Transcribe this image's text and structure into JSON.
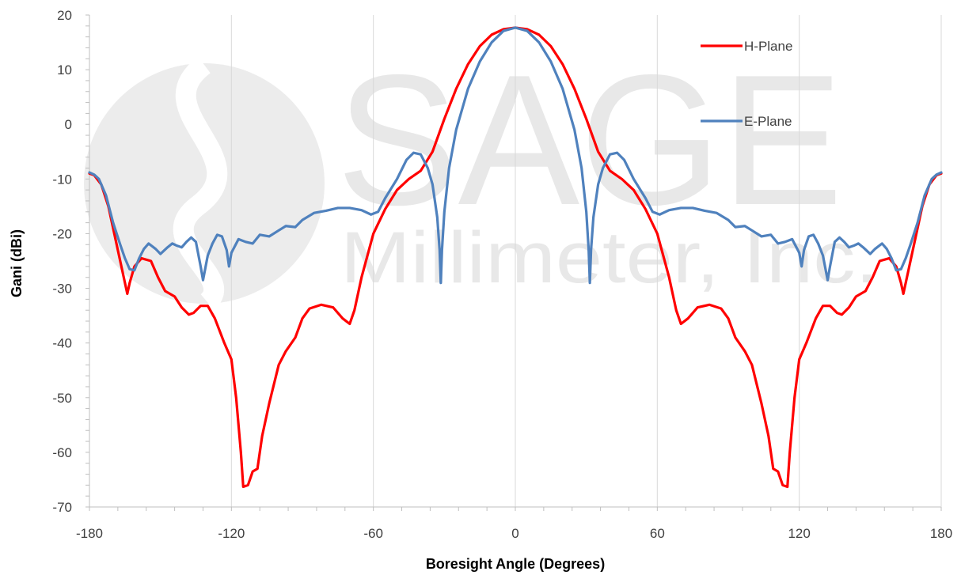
{
  "chart_data": {
    "type": "line",
    "title": "",
    "xlabel": "Boresight Angle (Degrees)",
    "ylabel": "Gani (dBi)",
    "xlim": [
      -180,
      180
    ],
    "ylim": [
      -70,
      20
    ],
    "xticks": [
      -180,
      -120,
      -60,
      0,
      60,
      120,
      180
    ],
    "yticks": [
      20,
      10,
      0,
      -10,
      -20,
      -30,
      -40,
      -50,
      -60,
      -70
    ],
    "grid": "vertical major lines",
    "legend_position": "top-right, inside plot",
    "watermark": {
      "line1": "SAGE",
      "line2": "Millimeter, Inc."
    },
    "series": [
      {
        "name": "H-Plane",
        "color": "#ff0000",
        "points": [
          [
            0,
            17.7
          ],
          [
            5,
            17.4
          ],
          [
            10,
            16.4
          ],
          [
            15,
            14.3
          ],
          [
            20,
            11.0
          ],
          [
            25,
            6.5
          ],
          [
            30,
            1.0
          ],
          [
            35,
            -5.0
          ],
          [
            40,
            -8.5
          ],
          [
            45,
            -10.0
          ],
          [
            50,
            -12.0
          ],
          [
            55,
            -15.5
          ],
          [
            60,
            -20.0
          ],
          [
            65,
            -28.0
          ],
          [
            68,
            -34.0
          ],
          [
            70,
            -36.5
          ],
          [
            73,
            -35.5
          ],
          [
            77,
            -33.5
          ],
          [
            82,
            -33.0
          ],
          [
            87,
            -33.7
          ],
          [
            90,
            -35.5
          ],
          [
            93,
            -39.0
          ],
          [
            97,
            -41.5
          ],
          [
            100,
            -44.0
          ],
          [
            104,
            -51.0
          ],
          [
            107,
            -57.0
          ],
          [
            109,
            -63.0
          ],
          [
            111,
            -63.5
          ],
          [
            113,
            -66.0
          ],
          [
            115,
            -66.3
          ],
          [
            116,
            -60.0
          ],
          [
            118,
            -50.0
          ],
          [
            120,
            -43.0
          ],
          [
            123,
            -40.0
          ],
          [
            127,
            -35.5
          ],
          [
            130,
            -33.2
          ],
          [
            133,
            -33.2
          ],
          [
            136,
            -34.5
          ],
          [
            138,
            -34.8
          ],
          [
            141,
            -33.5
          ],
          [
            144,
            -31.5
          ],
          [
            148,
            -30.5
          ],
          [
            151,
            -28.0
          ],
          [
            154,
            -25.0
          ],
          [
            158,
            -24.5
          ],
          [
            161,
            -26.0
          ],
          [
            163,
            -29.0
          ],
          [
            164,
            -31.0
          ],
          [
            166,
            -27.0
          ],
          [
            169,
            -21.0
          ],
          [
            172,
            -15.0
          ],
          [
            175,
            -11.0
          ],
          [
            178,
            -9.3
          ],
          [
            180,
            -9.0
          ]
        ]
      },
      {
        "name": "E-Plane",
        "color": "#4f81bd",
        "points": [
          [
            0,
            17.7
          ],
          [
            5,
            17.1
          ],
          [
            10,
            15.0
          ],
          [
            15,
            11.5
          ],
          [
            20,
            6.5
          ],
          [
            25,
            -1.0
          ],
          [
            28,
            -8.0
          ],
          [
            30,
            -16.0
          ],
          [
            31,
            -23.0
          ],
          [
            31.5,
            -29.0
          ],
          [
            32,
            -23.0
          ],
          [
            33,
            -17.0
          ],
          [
            35,
            -11.0
          ],
          [
            37,
            -8.0
          ],
          [
            40,
            -5.5
          ],
          [
            43,
            -5.2
          ],
          [
            46,
            -6.5
          ],
          [
            50,
            -10.0
          ],
          [
            55,
            -13.5
          ],
          [
            58,
            -16.0
          ],
          [
            61,
            -16.5
          ],
          [
            65,
            -15.7
          ],
          [
            70,
            -15.3
          ],
          [
            75,
            -15.3
          ],
          [
            80,
            -15.8
          ],
          [
            85,
            -16.2
          ],
          [
            90,
            -17.5
          ],
          [
            93,
            -18.8
          ],
          [
            97,
            -18.6
          ],
          [
            100,
            -19.4
          ],
          [
            104,
            -20.5
          ],
          [
            108,
            -20.2
          ],
          [
            111,
            -21.8
          ],
          [
            114,
            -21.5
          ],
          [
            117,
            -21.0
          ],
          [
            120,
            -23.5
          ],
          [
            121,
            -26.0
          ],
          [
            122,
            -23.0
          ],
          [
            124,
            -20.5
          ],
          [
            126,
            -20.2
          ],
          [
            128,
            -21.8
          ],
          [
            130,
            -24.0
          ],
          [
            132,
            -28.5
          ],
          [
            133,
            -26.0
          ],
          [
            135,
            -21.5
          ],
          [
            137,
            -20.7
          ],
          [
            139,
            -21.5
          ],
          [
            141,
            -22.5
          ],
          [
            143,
            -22.2
          ],
          [
            145,
            -21.8
          ],
          [
            147,
            -22.5
          ],
          [
            150,
            -23.7
          ],
          [
            152,
            -22.8
          ],
          [
            155,
            -21.8
          ],
          [
            157,
            -22.8
          ],
          [
            159,
            -24.5
          ],
          [
            161,
            -26.7
          ],
          [
            163,
            -26.5
          ],
          [
            165,
            -24.5
          ],
          [
            167,
            -22.0
          ],
          [
            170,
            -18.0
          ],
          [
            173,
            -13.0
          ],
          [
            176,
            -10.0
          ],
          [
            178,
            -9.2
          ],
          [
            180,
            -8.8
          ]
        ]
      }
    ]
  }
}
